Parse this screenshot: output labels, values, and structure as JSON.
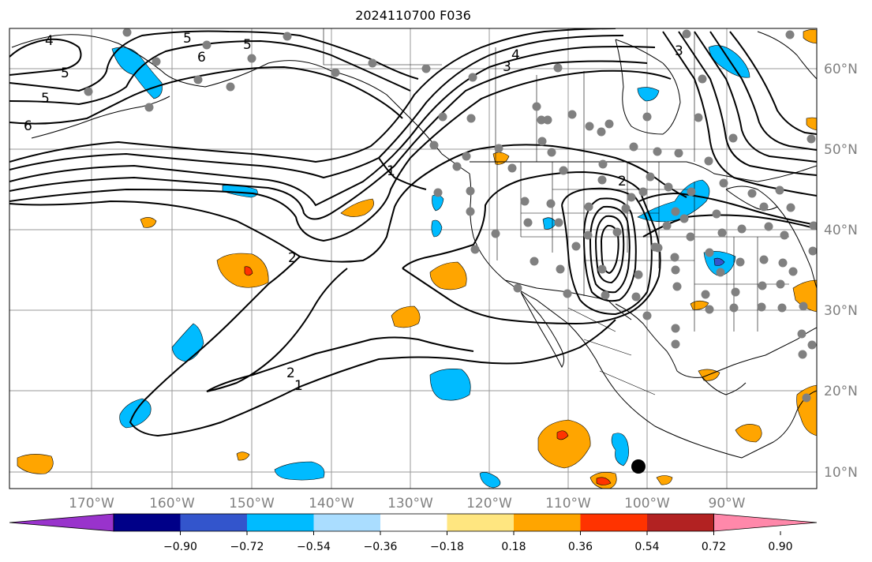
{
  "title": "2024110700 F036",
  "map": {
    "lon_ticks": [
      "170°W",
      "160°W",
      "150°W",
      "140°W",
      "130°W",
      "120°W",
      "110°W",
      "100°W",
      "90°W"
    ],
    "lat_ticks": [
      "60°N",
      "50°N",
      "40°N",
      "30°N",
      "20°N",
      "10°N"
    ],
    "contour_labels": [
      "4",
      "5",
      "6",
      "5",
      "5",
      "6",
      "3",
      "3",
      "4",
      "1",
      "2",
      "2",
      "2",
      "1",
      "5"
    ]
  },
  "colorbar": {
    "colors": [
      "#9933cc",
      "#000088",
      "#3355cc",
      "#00bbff",
      "#aaddff",
      "#ffffff",
      "#ffe680",
      "#ffa500",
      "#ff3300",
      "#b22222",
      "#ff88aa"
    ],
    "tick_labels": [
      "−0.90",
      "−0.72",
      "−0.54",
      "−0.36",
      "−0.18",
      "0.18",
      "0.36",
      "0.54",
      "0.72",
      "0.90"
    ]
  }
}
